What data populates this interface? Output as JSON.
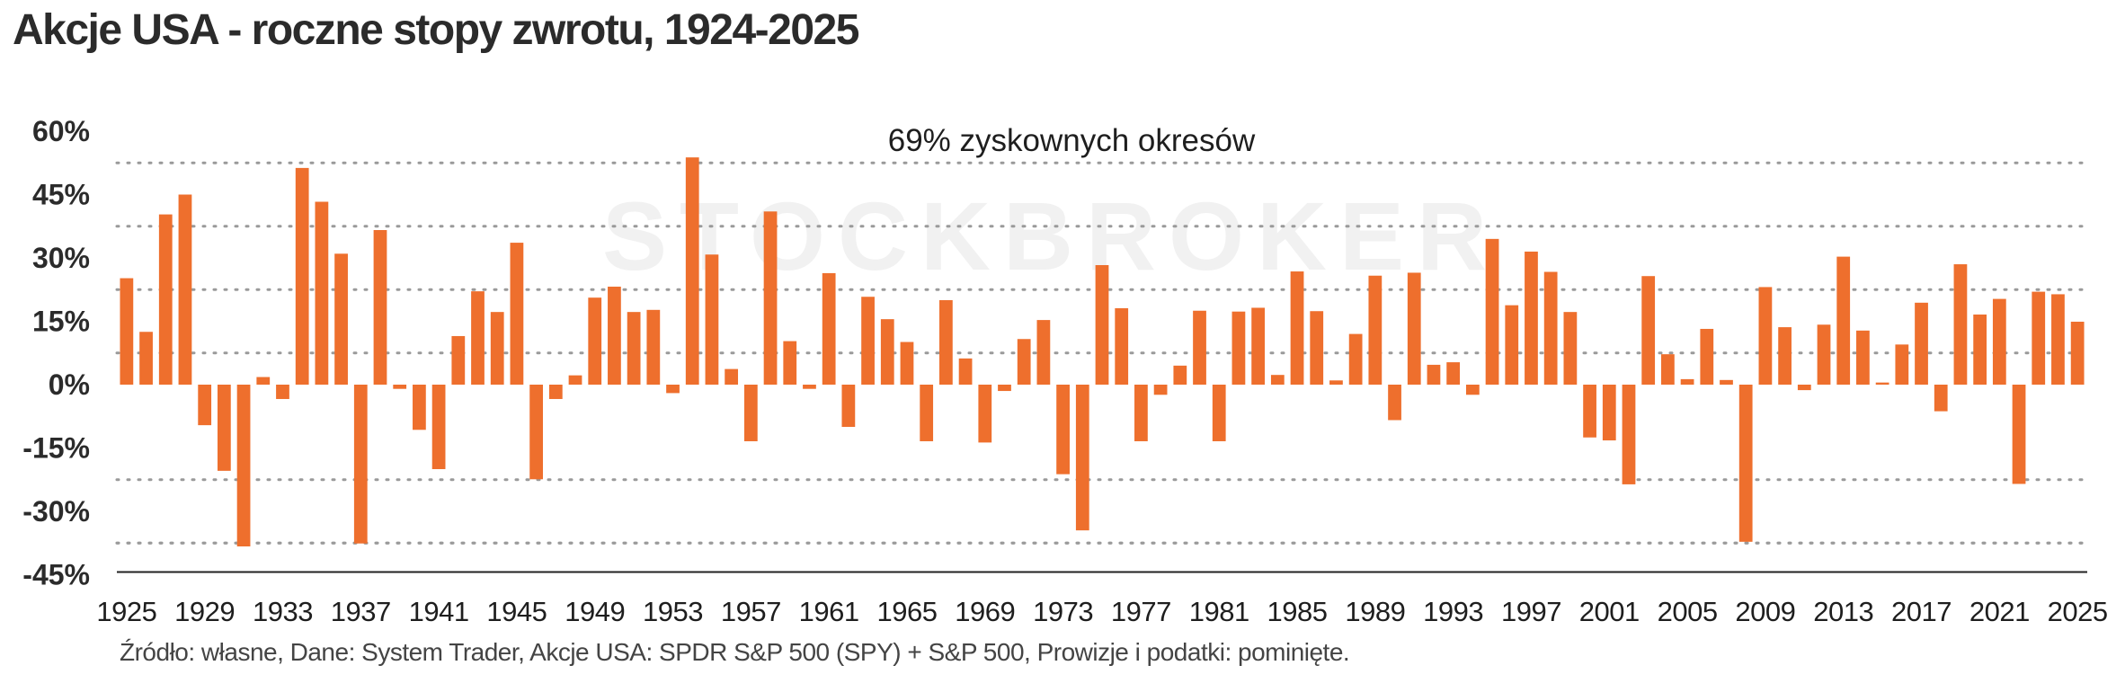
{
  "title": "Akcje USA - roczne stopy zwrotu, 1924-2025",
  "watermark": "STOCKBROKER",
  "source": "Źródło: własne, Dane: System Trader, Akcje USA: SPDR S&P 500 (SPY) + S&P 500, Prowizje i podatki: pominięte.",
  "colors": {
    "bar": "#ee6f2d",
    "grid": "#9a9a9a",
    "axis": "#222222"
  },
  "chart_data": {
    "type": "bar",
    "annotation": "69% zyskownych okresów",
    "xlabel": "",
    "ylabel": "",
    "ylim": [
      -45,
      60
    ],
    "yticks": [
      60,
      45,
      30,
      15,
      0,
      -15,
      -30,
      -45
    ],
    "ytick_labels": [
      "60%",
      "45%",
      "30%",
      "15%",
      "0%",
      "-15%",
      "-30%",
      "-45%"
    ],
    "xtick_labels": [
      "1925",
      "1929",
      "1933",
      "1937",
      "1941",
      "1945",
      "1949",
      "1953",
      "1957",
      "1961",
      "1965",
      "1969",
      "1973",
      "1977",
      "1981",
      "1985",
      "1989",
      "1993",
      "1997",
      "2001",
      "2005",
      "2009",
      "2013",
      "2017",
      "2021",
      "2025"
    ],
    "grid": true,
    "legend": "none",
    "categories": [
      1925,
      1926,
      1927,
      1928,
      1929,
      1930,
      1931,
      1932,
      1933,
      1934,
      1935,
      1936,
      1937,
      1938,
      1939,
      1940,
      1941,
      1942,
      1943,
      1944,
      1945,
      1946,
      1947,
      1948,
      1949,
      1950,
      1951,
      1952,
      1953,
      1954,
      1955,
      1956,
      1957,
      1958,
      1959,
      1960,
      1961,
      1962,
      1963,
      1964,
      1965,
      1966,
      1967,
      1968,
      1969,
      1970,
      1971,
      1972,
      1973,
      1974,
      1975,
      1976,
      1977,
      1978,
      1979,
      1980,
      1981,
      1982,
      1983,
      1984,
      1985,
      1986,
      1987,
      1988,
      1989,
      1990,
      1991,
      1992,
      1993,
      1994,
      1995,
      1996,
      1997,
      1998,
      1999,
      2000,
      2001,
      2002,
      2003,
      2004,
      2005,
      2006,
      2007,
      2008,
      2009,
      2010,
      2011,
      2012,
      2013,
      2014,
      2015,
      2016,
      2017,
      2018,
      2019,
      2020,
      2021,
      2022,
      2023,
      2024,
      2025
    ],
    "values": [
      25.2,
      12.5,
      40.3,
      45,
      -9.6,
      -20.4,
      -38.3,
      1.8,
      -3.4,
      51.3,
      43.3,
      31,
      -37.6,
      36.6,
      -1,
      -10.7,
      -20,
      11.5,
      22.1,
      17.2,
      33.6,
      -22.4,
      -3.4,
      2.2,
      20.6,
      23.2,
      17.2,
      17.7,
      -2,
      53.8,
      30.8,
      3.7,
      -13.4,
      41,
      10.3,
      -1,
      26.4,
      -10,
      20.8,
      15.5,
      10.1,
      -13.4,
      20,
      6.2,
      -13.7,
      -1.5,
      10.8,
      15.3,
      -21.2,
      -34.5,
      28.3,
      18.1,
      -13.4,
      -2.4,
      4.5,
      17.5,
      -13.4,
      17.3,
      18.2,
      2.3,
      26.8,
      17.4,
      1,
      12,
      25.8,
      -8.4,
      26.5,
      4.7,
      5.3,
      -2.4,
      34.5,
      18.8,
      31.5,
      26.7,
      17.2,
      -12.5,
      -13.2,
      -23.6,
      25.7,
      7.2,
      1.3,
      13.2,
      1.1,
      -37.2,
      23.1,
      13.6,
      -1.3,
      14.2,
      30.3,
      12.8,
      0.5,
      9.5,
      19.4,
      -6.3,
      28.5,
      16.6,
      20.3,
      -23.5,
      22,
      21.4,
      14.9
    ]
  }
}
